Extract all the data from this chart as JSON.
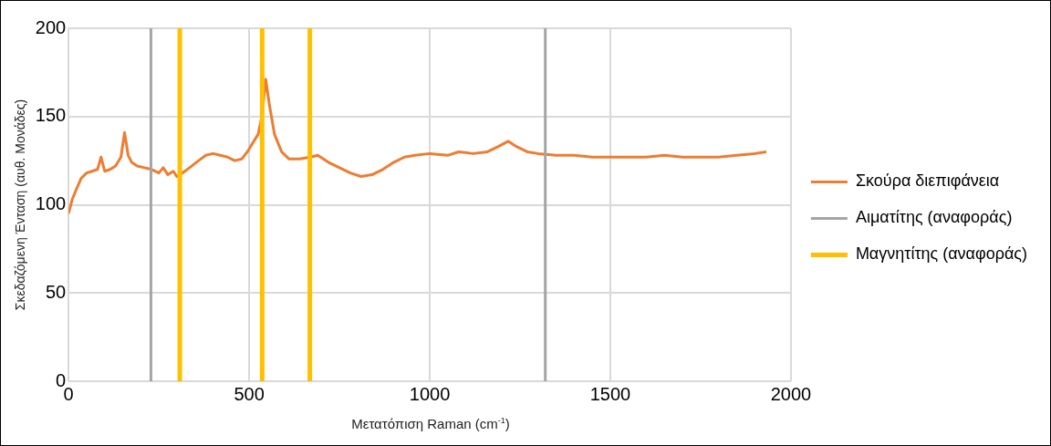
{
  "chart_data": {
    "type": "line",
    "xlabel": "Μετατόπιση Raman (cm$^{-1}$)",
    "ylabel": "Σκεδαζόμενη Ένταση (αυθ. Μονάδες)",
    "xlim": [
      0,
      2000
    ],
    "xticks": [
      0,
      500,
      1000,
      1500,
      2000
    ],
    "ylim": [
      0,
      200
    ],
    "yticks": [
      0,
      50,
      100,
      150,
      200
    ],
    "grid": true,
    "legend": "right",
    "marker": "none",
    "line_style": "solid",
    "series": [
      {
        "name": "Σκούρα διεπιφάνεια",
        "color": "#ed7d31",
        "x": [
          0,
          10,
          20,
          35,
          50,
          65,
          80,
          90,
          100,
          115,
          130,
          145,
          155,
          165,
          175,
          190,
          210,
          230,
          250,
          262,
          275,
          290,
          300,
          315,
          335,
          360,
          380,
          400,
          420,
          440,
          460,
          480,
          495,
          510,
          525,
          535,
          546,
          555,
          570,
          590,
          610,
          640,
          670,
          690,
          720,
          750,
          780,
          810,
          840,
          870,
          900,
          930,
          960,
          1000,
          1050,
          1080,
          1120,
          1160,
          1190,
          1217,
          1240,
          1270,
          1300,
          1350,
          1400,
          1450,
          1500,
          1550,
          1600,
          1650,
          1700,
          1750,
          1800,
          1850,
          1900,
          1932
        ],
        "values": [
          95,
          103,
          108,
          115,
          118,
          119,
          120,
          127,
          119,
          120,
          122,
          127,
          141,
          128,
          124,
          122,
          121,
          120,
          118,
          121,
          117,
          119,
          116,
          118,
          121,
          125,
          128,
          129,
          128,
          127,
          125,
          126,
          130,
          135,
          140,
          150,
          171,
          158,
          140,
          130,
          126,
          126,
          127,
          128,
          124,
          121,
          118,
          116,
          117,
          120,
          124,
          127,
          128,
          129,
          128,
          130,
          129,
          130,
          133,
          136,
          133,
          130,
          129,
          128,
          128,
          127,
          127,
          127,
          127,
          128,
          127,
          127,
          127,
          128,
          129,
          130
        ]
      },
      {
        "name": "Αιματίτης (αναφοράς)",
        "color": "#a5a5a5",
        "x": [
          228,
          228,
          null,
          1320,
          1320
        ],
        "values": [
          0,
          200,
          null,
          200,
          0
        ]
      },
      {
        "name": "Μαγνητίτης (αναφοράς)",
        "color": "#ffc000",
        "x": [
          308,
          308,
          null,
          536,
          536,
          null,
          668,
          668
        ],
        "values": [
          0,
          200,
          null,
          200,
          0,
          null,
          0,
          200
        ]
      }
    ]
  }
}
